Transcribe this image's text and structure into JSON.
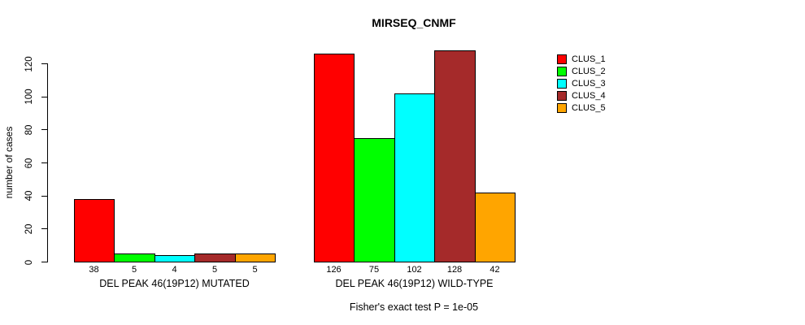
{
  "title": "MIRSEQ_CNMF",
  "chart_data": {
    "type": "bar",
    "title": "MIRSEQ_CNMF",
    "xlabel": "",
    "ylabel": "number of cases",
    "yticks": [
      0,
      20,
      40,
      60,
      80,
      100,
      120
    ],
    "ylim": [
      0,
      130
    ],
    "grid": false,
    "legend_position": "right",
    "bar_value_labels": true,
    "series": [
      "CLUS_1",
      "CLUS_2",
      "CLUS_3",
      "CLUS_4",
      "CLUS_5"
    ],
    "series_colors": [
      "#FF0000",
      "#00FF00",
      "#00FFFF",
      "#A52A2A",
      "#FFA500"
    ],
    "groups": [
      {
        "label": "DEL PEAK 46(19P12) MUTATED",
        "values": [
          38,
          5,
          4,
          5,
          5
        ]
      },
      {
        "label": "DEL PEAK 46(19P12) WILD-TYPE",
        "values": [
          126,
          75,
          102,
          128,
          42
        ]
      }
    ],
    "legend": {
      "entries": [
        {
          "label": "CLUS_1",
          "color": "#FF0000"
        },
        {
          "label": "CLUS_2",
          "color": "#00FF00"
        },
        {
          "label": "CLUS_3",
          "color": "#00FFFF"
        },
        {
          "label": "CLUS_4",
          "color": "#A52A2A"
        },
        {
          "label": "CLUS_5",
          "color": "#FFA500"
        }
      ]
    },
    "annotation": "Fisher's exact test P = 1e-05"
  }
}
